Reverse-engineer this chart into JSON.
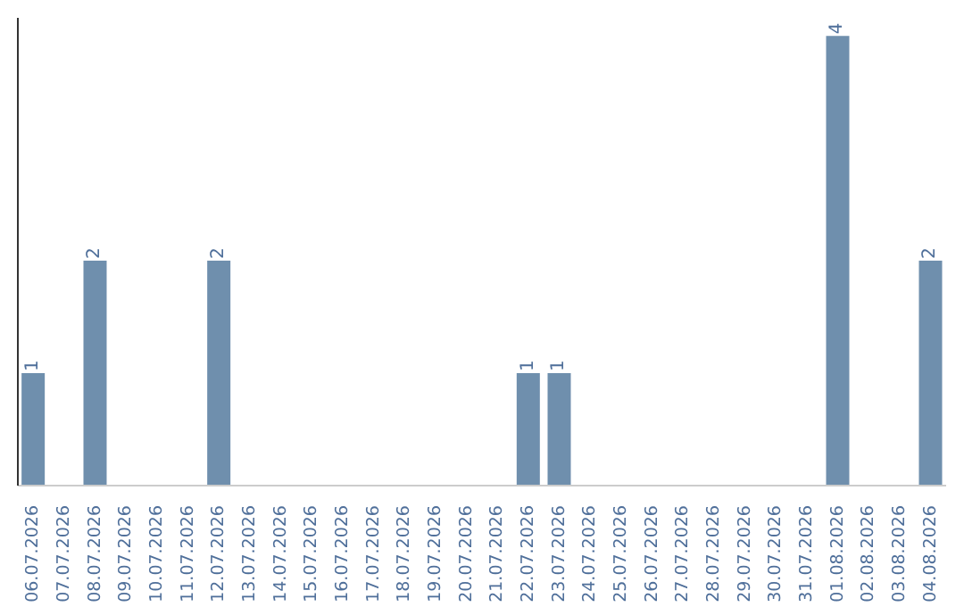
{
  "chart_data": {
    "type": "bar",
    "categories": [
      "06.07.2026",
      "07.07.2026",
      "08.07.2026",
      "09.07.2026",
      "10.07.2026",
      "11.07.2026",
      "12.07.2026",
      "13.07.2026",
      "14.07.2026",
      "15.07.2026",
      "16.07.2026",
      "17.07.2026",
      "18.07.2026",
      "19.07.2026",
      "20.07.2026",
      "21.07.2026",
      "22.07.2026",
      "23.07.2026",
      "24.07.2026",
      "25.07.2026",
      "26.07.2026",
      "27.07.2026",
      "28.07.2026",
      "29.07.2026",
      "30.07.2026",
      "31.07.2026",
      "01.08.2026",
      "02.08.2026",
      "03.08.2026",
      "04.08.2026"
    ],
    "values": [
      1,
      0,
      2,
      0,
      0,
      0,
      2,
      0,
      0,
      0,
      0,
      0,
      0,
      0,
      0,
      0,
      1,
      1,
      0,
      0,
      0,
      0,
      0,
      0,
      0,
      0,
      4,
      0,
      0,
      2
    ],
    "value_labels": [
      "1",
      null,
      "2",
      null,
      null,
      null,
      "2",
      null,
      null,
      null,
      null,
      null,
      null,
      null,
      null,
      null,
      "1",
      "1",
      null,
      null,
      null,
      null,
      null,
      null,
      null,
      null,
      "4",
      null,
      null,
      "2"
    ],
    "color": "#6f8fad"
  }
}
